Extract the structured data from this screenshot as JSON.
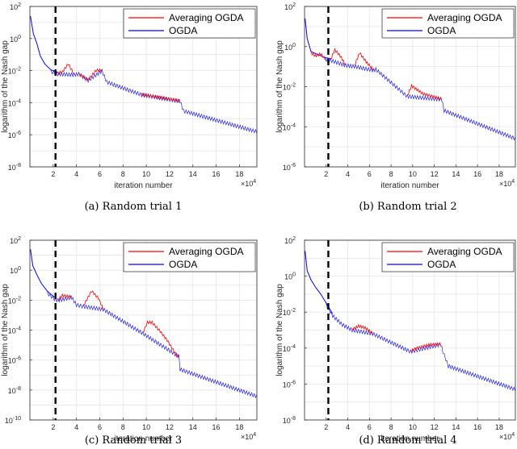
{
  "colors": {
    "averaging": "#ff0000",
    "ogda": "#0000ff",
    "switch_line": "#000000",
    "grid": "#e6e6e6"
  },
  "chart_data": [
    {
      "type": "line",
      "caption": "(a) Random trial 1",
      "xlabel": "iteration number",
      "ylabel": "logarithm of the Nash gap",
      "x_multiplier": "×10",
      "x_multiplier_exp": "4",
      "xlim": [
        0,
        19.5
      ],
      "xticks": [
        2,
        4,
        6,
        8,
        10,
        12,
        14,
        16,
        18
      ],
      "yticks": [
        -8,
        -6,
        -4,
        -2,
        0,
        2
      ],
      "ylim_log10": [
        -8,
        2
      ],
      "grid": true,
      "legend_position": "top-right",
      "switch_x": 2.2,
      "series": [
        {
          "name": "Averaging OGDA",
          "segments": [
            [
              [
                2.4,
                -2.1
              ],
              [
                2.8,
                -2.0
              ],
              [
                3.3,
                -1.5
              ],
              [
                3.8,
                -2.15
              ]
            ],
            [
              [
                4.2,
                -2.1
              ],
              [
                5.0,
                -2.5
              ],
              [
                5.7,
                -1.9
              ],
              [
                6.2,
                -1.9
              ]
            ],
            [
              [
                9.6,
                -3.4
              ],
              [
                12.9,
                -3.8
              ]
            ]
          ]
        },
        {
          "name": "OGDA",
          "points": [
            [
              0.05,
              1.4
            ],
            [
              0.3,
              0.3
            ],
            [
              0.6,
              -0.3
            ],
            [
              0.9,
              -1.1
            ],
            [
              1.3,
              -1.6
            ],
            [
              1.8,
              -1.95
            ],
            [
              2.4,
              -2.1
            ],
            [
              3.8,
              -2.15
            ],
            [
              4.2,
              -2.1
            ],
            [
              5.0,
              -2.5
            ],
            [
              6.2,
              -1.9
            ],
            [
              6.6,
              -2.6
            ],
            [
              9.6,
              -3.4
            ],
            [
              12.9,
              -3.8
            ],
            [
              13.2,
              -4.4
            ],
            [
              19.5,
              -5.7
            ]
          ]
        }
      ]
    },
    {
      "type": "line",
      "caption": "(b) Random trial 2",
      "xlabel": "iteration number",
      "ylabel": "logarithm of the Nash gap",
      "x_multiplier": "×10",
      "x_multiplier_exp": "4",
      "xlim": [
        0,
        19.5
      ],
      "xticks": [
        2,
        4,
        6,
        8,
        10,
        12,
        14,
        16,
        18
      ],
      "yticks": [
        -6,
        -4,
        -2,
        0,
        2
      ],
      "ylim_log10": [
        -6,
        2
      ],
      "grid": true,
      "legend_position": "top-right",
      "switch_x": 2.2,
      "series": [
        {
          "name": "Averaging OGDA",
          "segments": [
            [
              [
                0.6,
                -0.25
              ],
              [
                1.0,
                -0.4
              ],
              [
                1.5,
                -0.3
              ],
              [
                1.9,
                -0.55
              ]
            ],
            [
              [
                2.4,
                -0.6
              ],
              [
                2.8,
                -0.1
              ],
              [
                3.3,
                -0.4
              ],
              [
                3.8,
                -0.85
              ]
            ],
            [
              [
                4.6,
                -0.9
              ],
              [
                5.1,
                -0.25
              ],
              [
                5.7,
                -0.7
              ],
              [
                6.4,
                -1.1
              ]
            ],
            [
              [
                9.5,
                -2.4
              ],
              [
                9.9,
                -1.9
              ],
              [
                11.0,
                -2.3
              ],
              [
                12.7,
                -2.55
              ]
            ]
          ]
        },
        {
          "name": "OGDA",
          "points": [
            [
              0.05,
              1.4
            ],
            [
              0.25,
              0.4
            ],
            [
              0.6,
              -0.25
            ],
            [
              1.9,
              -0.55
            ],
            [
              2.4,
              -0.6
            ],
            [
              3.8,
              -0.85
            ],
            [
              4.6,
              -0.9
            ],
            [
              6.4,
              -1.1
            ],
            [
              6.6,
              -1.05
            ],
            [
              9.5,
              -2.4
            ],
            [
              12.7,
              -2.55
            ],
            [
              12.9,
              -3.1
            ],
            [
              19.5,
              -4.5
            ]
          ]
        }
      ]
    },
    {
      "type": "line",
      "caption": "(c) Random trial 3",
      "xlabel": "iteration number",
      "ylabel": "logarithm of the Nash gap",
      "x_multiplier": "×10",
      "x_multiplier_exp": "4",
      "xlim": [
        0,
        19.5
      ],
      "xticks": [
        2,
        4,
        6,
        8,
        10,
        12,
        14,
        16,
        18
      ],
      "yticks": [
        -10,
        -8,
        -6,
        -4,
        -2,
        0,
        2
      ],
      "ylim_log10": [
        -10,
        2
      ],
      "grid": true,
      "legend_position": "top-right",
      "switch_x": 2.2,
      "series": [
        {
          "name": "Averaging OGDA",
          "segments": [
            [
              [
                2.4,
                -1.9
              ],
              [
                2.8,
                -1.6
              ],
              [
                3.6,
                -1.7
              ]
            ],
            [
              [
                4.6,
                -2.3
              ],
              [
                5.3,
                -1.3
              ],
              [
                5.9,
                -1.8
              ],
              [
                6.3,
                -2.5
              ]
            ],
            [
              [
                9.7,
                -4.1
              ],
              [
                10.1,
                -3.4
              ],
              [
                10.5,
                -3.4
              ],
              [
                11.2,
                -4.0
              ],
              [
                11.8,
                -4.6
              ],
              [
                12.6,
                -5.6
              ],
              [
                12.8,
                -5.65
              ]
            ]
          ]
        },
        {
          "name": "OGDA",
          "points": [
            [
              0.05,
              1.4
            ],
            [
              0.25,
              0.3
            ],
            [
              0.6,
              -0.3
            ],
            [
              1.0,
              -0.9
            ],
            [
              1.5,
              -1.4
            ],
            [
              2.1,
              -1.8
            ],
            [
              2.4,
              -1.9
            ],
            [
              3.6,
              -1.7
            ],
            [
              4.0,
              -2.2
            ],
            [
              4.6,
              -2.3
            ],
            [
              6.3,
              -2.5
            ],
            [
              9.7,
              -4.1
            ],
            [
              12.8,
              -5.65
            ],
            [
              12.9,
              -6.5
            ],
            [
              19.5,
              -8.3
            ]
          ]
        }
      ]
    },
    {
      "type": "line",
      "caption": "(d) Random trial 4",
      "xlabel": "iteration number",
      "ylabel": "logarithm of the Nash gap",
      "x_multiplier": "×10",
      "x_multiplier_exp": "4",
      "xlim": [
        0,
        19.5
      ],
      "xticks": [
        2,
        4,
        6,
        8,
        10,
        12,
        14,
        16,
        18
      ],
      "yticks": [
        -8,
        -6,
        -4,
        -2,
        0,
        2
      ],
      "ylim_log10": [
        -8,
        2
      ],
      "grid": true,
      "legend_position": "top-right",
      "switch_x": 2.2,
      "series": [
        {
          "name": "Averaging OGDA",
          "segments": [
            [
              [
                4.4,
                -2.9
              ],
              [
                5.0,
                -2.7
              ],
              [
                5.6,
                -2.8
              ],
              [
                6.3,
                -3.1
              ]
            ],
            [
              [
                9.8,
                -4.1
              ],
              [
                10.3,
                -3.95
              ],
              [
                11.5,
                -3.75
              ],
              [
                12.6,
                -3.7
              ]
            ]
          ]
        },
        {
          "name": "OGDA",
          "points": [
            [
              0.05,
              1.4
            ],
            [
              0.25,
              0.3
            ],
            [
              0.6,
              -0.2
            ],
            [
              1.0,
              -0.6
            ],
            [
              1.5,
              -1.0
            ],
            [
              2.0,
              -1.5
            ],
            [
              2.6,
              -2.1
            ],
            [
              3.5,
              -2.6
            ],
            [
              4.4,
              -2.9
            ],
            [
              6.3,
              -3.1
            ],
            [
              9.8,
              -4.1
            ],
            [
              12.6,
              -3.7
            ],
            [
              12.8,
              -4.1
            ],
            [
              13.3,
              -4.9
            ],
            [
              19.5,
              -6.2
            ]
          ]
        }
      ]
    }
  ]
}
